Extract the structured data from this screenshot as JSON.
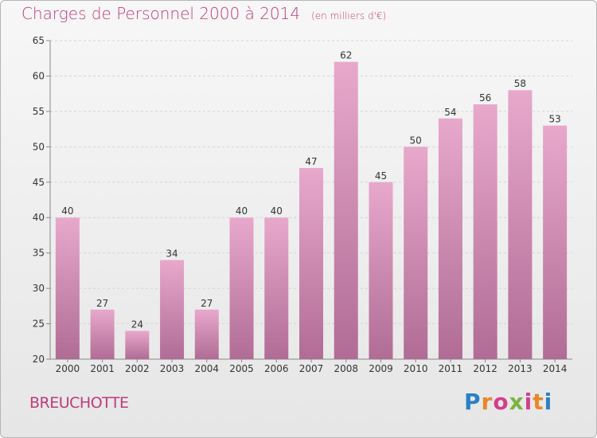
{
  "header": {
    "title": "Charges de Personnel 2000 à 2014",
    "unit": "(en milliers d'€)"
  },
  "footer": {
    "commune": "BREUCHOTTE",
    "logo_text": "Proxiti"
  },
  "colors": {
    "bar_top": "#e8a8cc",
    "bar_bottom": "#b06c95",
    "title": "#c03a7a",
    "grid": "#d4d4d4"
  },
  "chart_data": {
    "type": "bar",
    "title": "Charges de Personnel 2000 à 2014",
    "subtitle": "(en milliers d'€)",
    "xlabel": "",
    "ylabel": "",
    "categories": [
      "2000",
      "2001",
      "2002",
      "2003",
      "2004",
      "2005",
      "2006",
      "2007",
      "2008",
      "2009",
      "2010",
      "2011",
      "2012",
      "2013",
      "2014"
    ],
    "values": [
      40,
      27,
      24,
      34,
      27,
      40,
      40,
      47,
      62,
      45,
      50,
      54,
      56,
      58,
      53
    ],
    "ylim": [
      20,
      65
    ],
    "yticks": [
      20,
      25,
      30,
      35,
      40,
      45,
      50,
      55,
      60,
      65
    ],
    "grid": true
  }
}
